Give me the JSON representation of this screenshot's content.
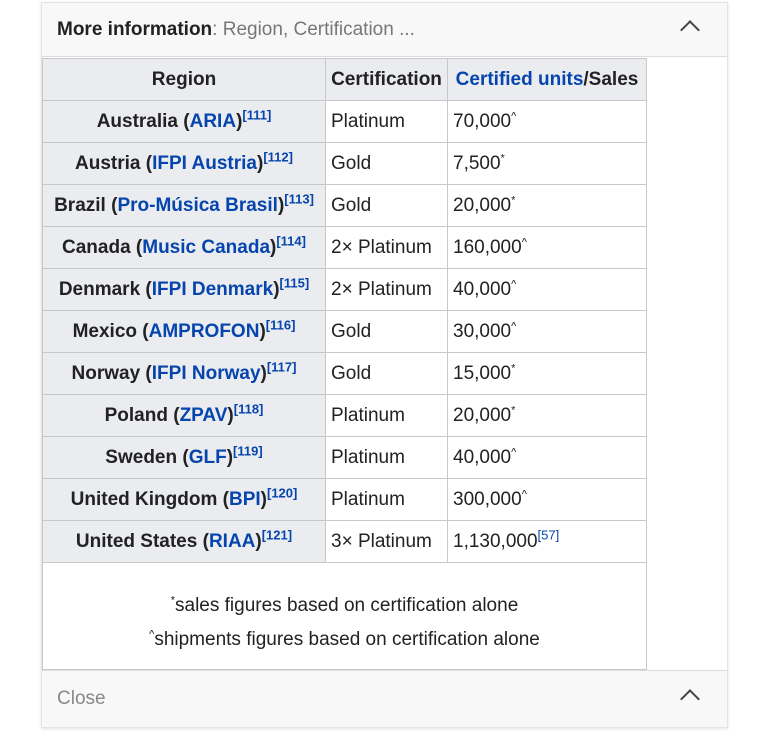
{
  "header": {
    "title": "More information",
    "summary": ": Region, Certification ..."
  },
  "columns": {
    "region": "Region",
    "certification": "Certification",
    "units_link": "Certified units",
    "units_rest": "/Sales"
  },
  "rows": [
    {
      "region": "Australia",
      "org": "ARIA",
      "ref": "[111]",
      "cert": "Platinum",
      "units": "70,000",
      "mark": "^"
    },
    {
      "region": "Austria",
      "org": "IFPI Austria",
      "ref": "[112]",
      "cert": "Gold",
      "units": "7,500",
      "mark": "*"
    },
    {
      "region": "Brazil",
      "org": "Pro-Música Brasil",
      "ref": "[113]",
      "cert": "Gold",
      "units": "20,000",
      "mark": "*"
    },
    {
      "region": "Canada",
      "org": "Music Canada",
      "ref": "[114]",
      "cert": "2× Platinum",
      "units": "160,000",
      "mark": "^"
    },
    {
      "region": "Denmark",
      "org": "IFPI Denmark",
      "ref": "[115]",
      "cert": "2× Platinum",
      "units": "40,000",
      "mark": "^"
    },
    {
      "region": "Mexico",
      "org": "AMPROFON",
      "ref": "[116]",
      "cert": "Gold",
      "units": "30,000",
      "mark": "^"
    },
    {
      "region": "Norway",
      "org": "IFPI Norway",
      "ref": "[117]",
      "cert": "Gold",
      "units": "15,000",
      "mark": "*"
    },
    {
      "region": "Poland",
      "org": "ZPAV",
      "ref": "[118]",
      "cert": "Platinum",
      "units": "20,000",
      "mark": "*"
    },
    {
      "region": "Sweden",
      "org": "GLF",
      "ref": "[119]",
      "cert": "Platinum",
      "units": "40,000",
      "mark": "^"
    },
    {
      "region": "United Kingdom",
      "org": "BPI",
      "ref": "[120]",
      "cert": "Platinum",
      "units": "300,000",
      "mark": "^"
    },
    {
      "region": "United States",
      "org": "RIAA",
      "ref": "[121]",
      "cert": "3× Platinum",
      "units": "1,130,000",
      "mark": "",
      "unit_ref": "[57]"
    }
  ],
  "notes": {
    "sales_mark": "*",
    "sales": "sales figures based on certification alone",
    "ship_mark": "^",
    "shipments": "shipments figures based on certification alone"
  },
  "footer": {
    "close": "Close"
  }
}
